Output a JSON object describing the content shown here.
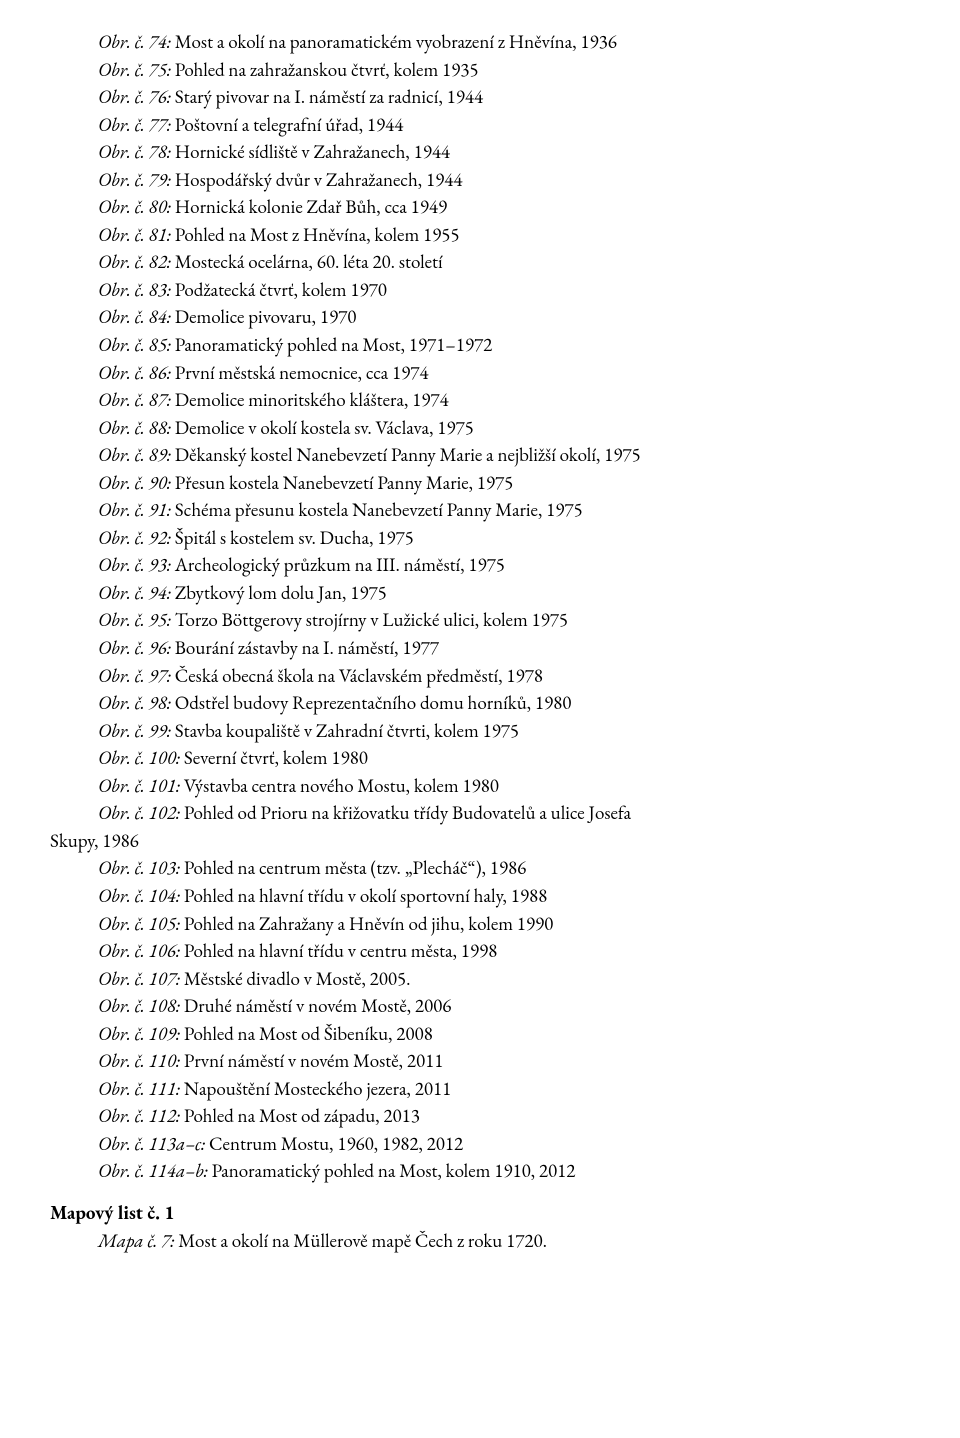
{
  "entries": [
    {
      "label": "Obr. č. 74:",
      "text": " Most a okolí na panoramatickém vyobrazení z Hněvína, 1936"
    },
    {
      "label": "Obr. č. 75:",
      "text": " Pohled na zahražanskou čtvrť, kolem 1935"
    },
    {
      "label": "Obr. č. 76:",
      "text": " Starý pivovar na I. náměstí za radnicí, 1944"
    },
    {
      "label": "Obr. č. 77:",
      "text": " Poštovní a telegrafní úřad, 1944"
    },
    {
      "label": "Obr. č. 78:",
      "text": " Hornické sídliště v Zahražanech, 1944"
    },
    {
      "label": "Obr. č. 79:",
      "text": " Hospodářský dvůr v Zahražanech, 1944"
    },
    {
      "label": "Obr. č. 80:",
      "text": " Hornická kolonie Zdař Bůh, cca 1949"
    },
    {
      "label": "Obr. č. 81:",
      "text": " Pohled na Most z Hněvína, kolem 1955"
    },
    {
      "label": "Obr. č. 82:",
      "text": " Mostecká ocelárna, 60. léta 20. století"
    },
    {
      "label": "Obr. č. 83:",
      "text": " Podžatecká čtvrť, kolem 1970"
    },
    {
      "label": "Obr. č. 84:",
      "text": " Demolice pivovaru, 1970"
    },
    {
      "label": "Obr. č. 85:",
      "text": " Panoramatický pohled na Most, 1971–1972"
    },
    {
      "label": "Obr. č. 86:",
      "text": " První městská nemocnice, cca 1974"
    },
    {
      "label": "Obr. č. 87:",
      "text": " Demolice minoritského kláštera, 1974"
    },
    {
      "label": "Obr. č. 88:",
      "text": " Demolice v okolí kostela sv. Václava, 1975"
    },
    {
      "label": "Obr. č. 89:",
      "text": " Děkanský kostel Nanebevzetí Panny Marie a nejbližší okolí, 1975"
    },
    {
      "label": "Obr. č. 90:",
      "text": " Přesun kostela Nanebevzetí Panny Marie, 1975"
    },
    {
      "label": "Obr. č. 91:",
      "text": " Schéma přesunu kostela Nanebevzetí Panny Marie, 1975"
    },
    {
      "label": "Obr. č. 92:",
      "text": " Špitál s kostelem sv. Ducha, 1975"
    },
    {
      "label": "Obr. č. 93:",
      "text": " Archeologický průzkum na III. náměstí, 1975"
    },
    {
      "label": "Obr. č. 94:",
      "text": " Zbytkový lom dolu Jan, 1975"
    },
    {
      "label": "Obr. č. 95:",
      "text": " Torzo Böttgerovy strojírny v Lužické ulici, kolem 1975"
    },
    {
      "label": "Obr. č. 96:",
      "text": " Bourání zástavby na I. náměstí, 1977"
    },
    {
      "label": "Obr. č. 97:",
      "text": " Česká obecná škola na Václavském předměstí, 1978"
    },
    {
      "label": "Obr. č. 98:",
      "text": " Odstřel budovy Reprezentačního domu horníků, 1980"
    },
    {
      "label": "Obr. č. 99:",
      "text": " Stavba koupaliště v Zahradní čtvrti, kolem 1975"
    },
    {
      "label": "Obr. č. 100:",
      "text": " Severní čtvrť, kolem 1980"
    },
    {
      "label": "Obr. č. 101:",
      "text": " Výstavba centra nového Mostu, kolem 1980"
    }
  ],
  "entry102": {
    "label": "Obr. č. 102:",
    "line1": " Pohled od Prioru na křižovatku třídy Budovatelů a ulice Josefa",
    "line2": "Skupy, 1986"
  },
  "entries2": [
    {
      "label": "Obr. č. 103:",
      "text": " Pohled na centrum města (tzv. „Plecháč“), 1986"
    },
    {
      "label": "Obr. č. 104:",
      "text": " Pohled na hlavní třídu v okolí sportovní haly, 1988"
    },
    {
      "label": "Obr. č. 105:",
      "text": " Pohled na Zahražany a Hněvín od jihu, kolem 1990"
    },
    {
      "label": "Obr. č. 106:",
      "text": " Pohled na hlavní třídu v centru města, 1998"
    },
    {
      "label": "Obr. č. 107:",
      "text": " Městské divadlo v Mostě, 2005."
    },
    {
      "label": "Obr. č. 108:",
      "text": " Druhé náměstí v novém Mostě, 2006"
    },
    {
      "label": "Obr. č. 109:",
      "text": " Pohled na Most od Šibeníku, 2008"
    },
    {
      "label": "Obr. č. 110:",
      "text": " První náměstí v novém Mostě, 2011"
    },
    {
      "label": "Obr. č. 111:",
      "text": " Napouštění Mosteckého jezera, 2011"
    },
    {
      "label": "Obr. č. 112:",
      "text": " Pohled na Most od západu, 2013"
    },
    {
      "label": "Obr. č. 113a–c:",
      "text": " Centrum Mostu, 1960, 1982, 2012"
    },
    {
      "label": "Obr. č. 114a–b:",
      "text": " Panoramatický pohled na Most, kolem 1910, 2012"
    }
  ],
  "mapHeading": "Mapový list č. 1",
  "mapEntry": {
    "label": "Mapa č. 7:",
    "text": " Most a okolí na Müllerově mapě Čech z roku 1720."
  }
}
